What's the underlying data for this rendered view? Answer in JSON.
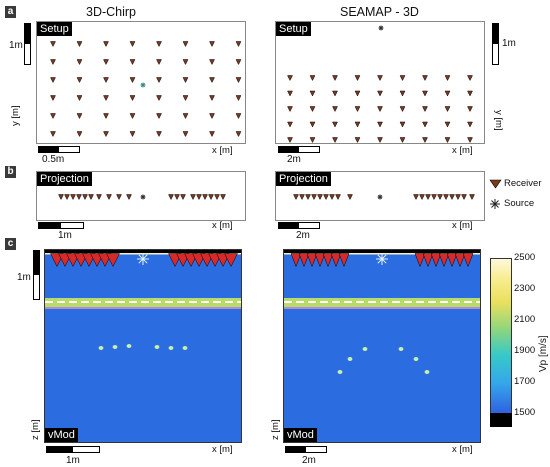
{
  "columns": {
    "left": "3D-Chirp",
    "right": "SEAMAP - 3D"
  },
  "rows": {
    "a": "a",
    "b": "b",
    "c": "c"
  },
  "tags": {
    "setup": "Setup",
    "projection": "Projection",
    "vmod": "vMod"
  },
  "axes": {
    "x": "x [m]",
    "y": "y [m]",
    "z": "z [m]"
  },
  "scales": {
    "a_left_h": "0.5m",
    "a_left_v": "1m",
    "a_right_h": "2m",
    "a_right_v": "1m",
    "b_left_h": "1m",
    "b_right_h": "2m",
    "c_left_h": "1m",
    "c_left_v": "1m",
    "c_right_h": "2m"
  },
  "legend": {
    "receiver": "Receiver",
    "source": "Source"
  },
  "colorbar": {
    "label": "Vp [m/s]",
    "ticks": [
      "2500",
      "2300",
      "2100",
      "1900",
      "1700",
      "1500"
    ],
    "range": [
      1500,
      2500
    ]
  },
  "colors": {
    "receiver": "#7b3a1e",
    "source": "#333333",
    "water": "#2b6de0",
    "layer": "#b8dc6a",
    "scatterer": "#c8f0a8"
  }
}
